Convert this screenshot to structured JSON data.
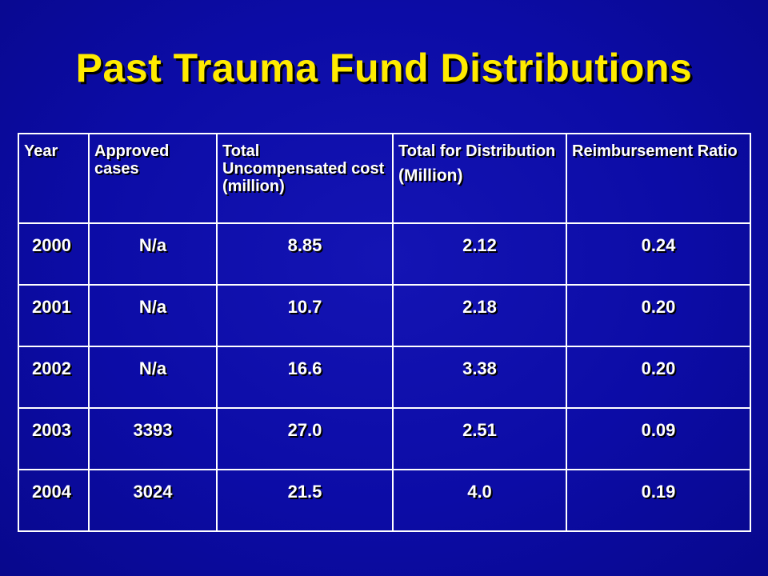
{
  "slide": {
    "title": "Past Trauma Fund Distributions"
  },
  "table": {
    "headers": [
      {
        "text": "Year",
        "line2": ""
      },
      {
        "text": "Approved cases",
        "line2": ""
      },
      {
        "text": "Total Uncompensated cost (million)",
        "line2": ""
      },
      {
        "text": "Total for Distribution",
        "line2": "(Million)"
      },
      {
        "text": "Reimbursement Ratio",
        "line2": ""
      }
    ],
    "rows": [
      [
        "2000",
        "N/a",
        "8.85",
        "2.12",
        "0.24"
      ],
      [
        "2001",
        "N/a",
        "10.7",
        "2.18",
        "0.20"
      ],
      [
        "2002",
        "N/a",
        "16.6",
        "3.38",
        "0.20"
      ],
      [
        "2003",
        "3393",
        "27.0",
        "2.51",
        "0.09"
      ],
      [
        "2004",
        "3024",
        "21.5",
        "4.0",
        "0.19"
      ]
    ]
  },
  "colors": {
    "background": "#0c0ca6",
    "title": "#ffeb00",
    "text": "#ffffff",
    "grid": "#ffffff"
  }
}
